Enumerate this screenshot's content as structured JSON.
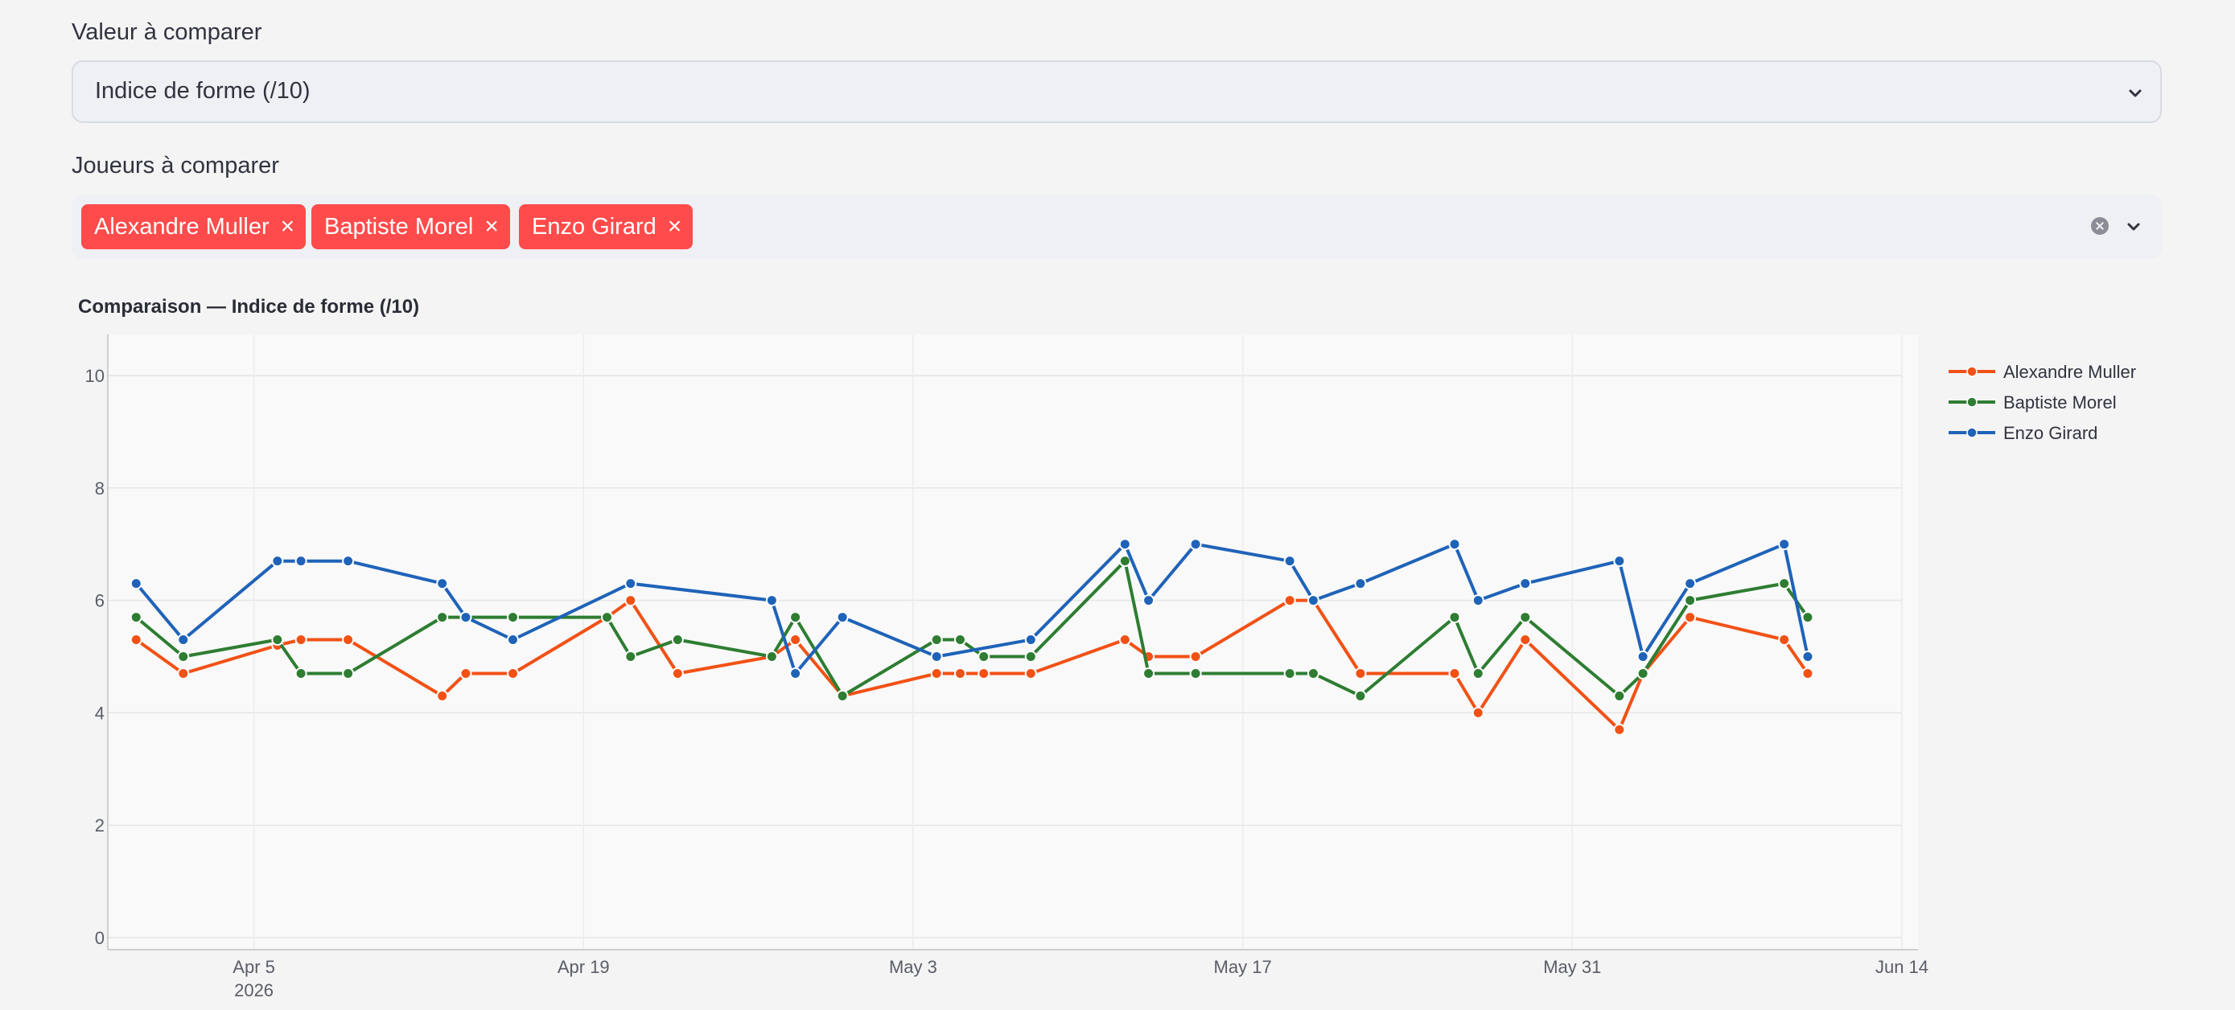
{
  "controls": {
    "value_label": "Valeur à comparer",
    "value_selected": "Indice de forme (/10)",
    "players_label": "Joueurs à comparer",
    "players_selected": [
      "Alexandre Muller",
      "Baptiste Morel",
      "Enzo Girard"
    ],
    "tag_remove_glyph": "×"
  },
  "colors": {
    "tag_bg": "#ff4b4b",
    "Alexandre Muller": "#f25116",
    "Baptiste Morel": "#2e7d32",
    "Enzo Girard": "#1f63b8"
  },
  "chart_data": {
    "type": "line",
    "title": "Comparaison — Indice de forme (/10)",
    "xlabel": "",
    "ylabel": "",
    "ylim": [
      0,
      10
    ],
    "yticks": [
      "0",
      "2",
      "4",
      "6",
      "8",
      "10"
    ],
    "xlim": [
      "2026-03-30",
      "2026-06-14"
    ],
    "xticks": [
      {
        "date": "2026-04-05",
        "label": "Apr 5",
        "sublabel": "2026"
      },
      {
        "date": "2026-04-19",
        "label": "Apr 19",
        "sublabel": ""
      },
      {
        "date": "2026-05-03",
        "label": "May 3",
        "sublabel": ""
      },
      {
        "date": "2026-05-17",
        "label": "May 17",
        "sublabel": ""
      },
      {
        "date": "2026-05-31",
        "label": "May 31",
        "sublabel": ""
      },
      {
        "date": "2026-06-14",
        "label": "Jun 14",
        "sublabel": ""
      }
    ],
    "grid": true,
    "legend_position": "right",
    "series": [
      {
        "name": "Alexandre Muller",
        "x": [
          "2026-03-31",
          "2026-04-02",
          "2026-04-06",
          "2026-04-07",
          "2026-04-09",
          "2026-04-13",
          "2026-04-14",
          "2026-04-16",
          "2026-04-20",
          "2026-04-21",
          "2026-04-23",
          "2026-04-27",
          "2026-04-28",
          "2026-04-30",
          "2026-05-04",
          "2026-05-05",
          "2026-05-06",
          "2026-05-08",
          "2026-05-12",
          "2026-05-13",
          "2026-05-15",
          "2026-05-19",
          "2026-05-20",
          "2026-05-22",
          "2026-05-26",
          "2026-05-27",
          "2026-05-29",
          "2026-06-02",
          "2026-06-03",
          "2026-06-05",
          "2026-06-09",
          "2026-06-10"
        ],
        "y": [
          5.3,
          4.7,
          5.2,
          5.3,
          5.3,
          4.3,
          4.7,
          4.7,
          5.7,
          6.0,
          4.7,
          5.0,
          5.3,
          4.3,
          4.7,
          4.7,
          4.7,
          4.7,
          5.3,
          5.0,
          5.0,
          6.0,
          6.0,
          4.7,
          4.7,
          4.0,
          5.3,
          3.7,
          4.7,
          5.7,
          5.3,
          4.7
        ]
      },
      {
        "name": "Baptiste Morel",
        "x": [
          "2026-03-31",
          "2026-04-02",
          "2026-04-06",
          "2026-04-07",
          "2026-04-09",
          "2026-04-13",
          "2026-04-14",
          "2026-04-16",
          "2026-04-20",
          "2026-04-21",
          "2026-04-23",
          "2026-04-27",
          "2026-04-28",
          "2026-04-30",
          "2026-05-04",
          "2026-05-05",
          "2026-05-06",
          "2026-05-08",
          "2026-05-12",
          "2026-05-13",
          "2026-05-15",
          "2026-05-19",
          "2026-05-20",
          "2026-05-22",
          "2026-05-26",
          "2026-05-27",
          "2026-05-29",
          "2026-06-02",
          "2026-06-03",
          "2026-06-05",
          "2026-06-09",
          "2026-06-10"
        ],
        "y": [
          5.7,
          5.0,
          5.3,
          4.7,
          4.7,
          5.7,
          5.7,
          5.7,
          5.7,
          5.0,
          5.3,
          5.0,
          5.7,
          4.3,
          5.3,
          5.3,
          5.0,
          5.0,
          6.7,
          4.7,
          4.7,
          4.7,
          4.7,
          4.3,
          5.7,
          4.7,
          5.7,
          4.3,
          4.7,
          6.0,
          6.3,
          5.7
        ]
      },
      {
        "name": "Enzo Girard",
        "x": [
          "2026-03-31",
          "2026-04-02",
          "2026-04-06",
          "2026-04-07",
          "2026-04-09",
          "2026-04-13",
          "2026-04-14",
          "2026-04-16",
          "2026-04-21",
          "2026-04-27",
          "2026-04-28",
          "2026-04-30",
          "2026-05-04",
          "2026-05-08",
          "2026-05-12",
          "2026-05-13",
          "2026-05-15",
          "2026-05-19",
          "2026-05-20",
          "2026-05-22",
          "2026-05-26",
          "2026-05-27",
          "2026-05-29",
          "2026-06-02",
          "2026-06-03",
          "2026-06-05",
          "2026-06-09",
          "2026-06-10"
        ],
        "y": [
          6.3,
          5.3,
          6.7,
          6.7,
          6.7,
          6.3,
          5.7,
          5.3,
          6.3,
          6.0,
          4.7,
          5.7,
          5.0,
          5.3,
          7.0,
          6.0,
          7.0,
          6.7,
          6.0,
          6.3,
          7.0,
          6.0,
          6.3,
          6.7,
          5.0,
          6.3,
          7.0,
          5.0
        ]
      }
    ]
  }
}
